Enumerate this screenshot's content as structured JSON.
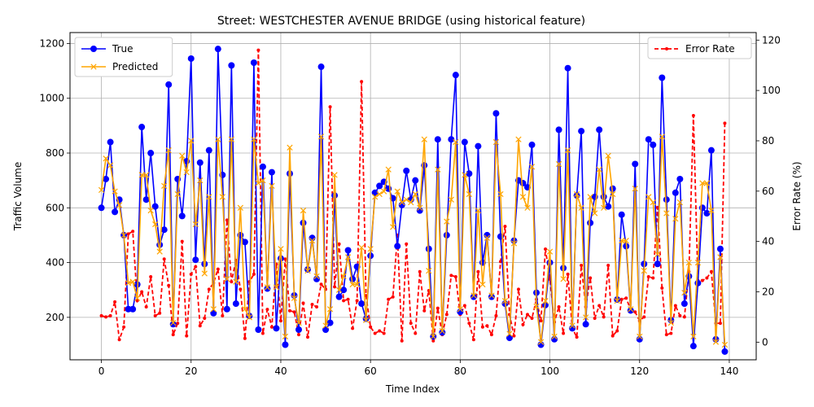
{
  "chart_data": {
    "type": "line",
    "title": "Street: WESTCHESTER AVENUE BRIDGE (using historical feature)",
    "xlabel": "Time Index",
    "ylabel": "Traffic Volume",
    "y2label": "Error Rate (%)",
    "xlim": [
      -7,
      146
    ],
    "ylim": [
      45,
      1240
    ],
    "y2lim": [
      -7,
      123
    ],
    "xticks": [
      0,
      20,
      40,
      60,
      80,
      100,
      120,
      140
    ],
    "yticks": [
      200,
      400,
      600,
      800,
      1000,
      1200
    ],
    "y2ticks": [
      0,
      20,
      40,
      60,
      80,
      100,
      120
    ],
    "grid": true,
    "x": [
      0,
      1,
      2,
      3,
      4,
      5,
      6,
      7,
      8,
      9,
      10,
      11,
      12,
      13,
      14,
      15,
      16,
      17,
      18,
      19,
      20,
      21,
      22,
      23,
      24,
      25,
      26,
      27,
      28,
      29,
      30,
      31,
      32,
      33,
      34,
      35,
      36,
      37,
      38,
      39,
      40,
      41,
      42,
      43,
      44,
      45,
      46,
      47,
      48,
      49,
      50,
      51,
      52,
      53,
      54,
      55,
      56,
      57,
      58,
      59,
      60,
      61,
      62,
      63,
      64,
      65,
      66,
      67,
      68,
      69,
      70,
      71,
      72,
      73,
      74,
      75,
      76,
      77,
      78,
      79,
      80,
      81,
      82,
      83,
      84,
      85,
      86,
      87,
      88,
      89,
      90,
      91,
      92,
      93,
      94,
      95,
      96,
      97,
      98,
      99,
      100,
      101,
      102,
      103,
      104,
      105,
      106,
      107,
      108,
      109,
      110,
      111,
      112,
      113,
      114,
      115,
      116,
      117,
      118,
      119,
      120,
      121,
      122,
      123,
      124,
      125,
      126,
      127,
      128,
      129,
      130,
      131,
      132,
      133,
      134,
      135,
      136,
      137,
      138,
      139
    ],
    "series": [
      {
        "name": "True",
        "axis": "left",
        "color": "#0000ff",
        "style": "solid",
        "marker": "circle",
        "values": [
          600,
          705,
          840,
          585,
          630,
          500,
          230,
          230,
          320,
          895,
          630,
          800,
          605,
          465,
          520,
          1050,
          175,
          705,
          570,
          770,
          1145,
          410,
          765,
          395,
          810,
          215,
          1180,
          720,
          230,
          1120,
          250,
          500,
          475,
          205,
          1130,
          155,
          750,
          305,
          730,
          160,
          415,
          100,
          725,
          280,
          155,
          545,
          375,
          490,
          340,
          1115,
          155,
          180,
          645,
          275,
          300,
          445,
          340,
          385,
          250,
          195,
          425,
          655,
          680,
          695,
          670,
          635,
          460,
          610,
          735,
          630,
          700,
          590,
          755,
          450,
          130,
          850,
          145,
          500,
          850,
          1085,
          220,
          840,
          725,
          275,
          825,
          400,
          500,
          275,
          945,
          495,
          250,
          125,
          480,
          700,
          690,
          675,
          830,
          290,
          100,
          245,
          400,
          120,
          885,
          380,
          1110,
          160,
          645,
          880,
          175,
          545,
          640,
          885,
          640,
          605,
          670,
          265,
          575,
          460,
          225,
          760,
          120,
          395,
          850,
          830,
          395,
          1075,
          630,
          190,
          655,
          705,
          250,
          350,
          95,
          325,
          600,
          580,
          810,
          120,
          450,
          75
        ]
      },
      {
        "name": "Predicted",
        "axis": "left",
        "color": "#ffa500",
        "style": "solid",
        "marker": "x",
        "values": [
          665,
          780,
          755,
          660,
          610,
          500,
          325,
          330,
          270,
          720,
          720,
          590,
          540,
          440,
          680,
          810,
          180,
          650,
          790,
          730,
          845,
          540,
          700,
          360,
          640,
          230,
          850,
          640,
          340,
          850,
          330,
          600,
          230,
          200,
          850,
          690,
          700,
          310,
          680,
          310,
          450,
          130,
          820,
          270,
          180,
          590,
          370,
          480,
          350,
          860,
          170,
          230,
          720,
          300,
          350,
          420,
          320,
          320,
          455,
          190,
          450,
          640,
          650,
          660,
          740,
          530,
          660,
          620,
          630,
          620,
          650,
          600,
          850,
          370,
          130,
          740,
          150,
          550,
          630,
          840,
          230,
          720,
          650,
          280,
          590,
          320,
          490,
          280,
          840,
          650,
          260,
          140,
          470,
          850,
          640,
          600,
          750,
          240,
          110,
          260,
          440,
          130,
          760,
          340,
          810,
          170,
          650,
          600,
          200,
          640,
          580,
          740,
          600,
          790,
          650,
          260,
          480,
          480,
          230,
          670,
          130,
          370,
          640,
          620,
          430,
          860,
          580,
          180,
          560,
          620,
          290,
          400,
          130,
          400,
          690,
          690,
          590,
          110,
          420,
          100
        ]
      },
      {
        "name": "Error Rate",
        "axis": "right",
        "color": "#ff0000",
        "style": "dashed",
        "marker": "dot",
        "values": [
          10.5,
          10.0,
          10.5,
          16.0,
          1.0,
          6.0,
          43.0,
          44.0,
          16.5,
          20.0,
          14.0,
          26.0,
          10.5,
          11.5,
          33.0,
          22.5,
          3.0,
          7.5,
          40.0,
          2.5,
          27.0,
          30.0,
          6.5,
          9.5,
          21.0,
          23.5,
          29.0,
          10.5,
          48.5,
          24.0,
          32.5,
          21.0,
          1.5,
          24.0,
          27.0,
          116.0,
          3.5,
          13.0,
          6.0,
          31.0,
          8.5,
          33.0,
          12.5,
          12.0,
          3.0,
          15.5,
          2.0,
          15.0,
          14.0,
          23.0,
          21.0,
          93.5,
          22.0,
          39.0,
          16.5,
          17.0,
          5.5,
          16.5,
          103.5,
          18.5,
          6.0,
          3.5,
          4.5,
          3.5,
          17.0,
          18.0,
          42.5,
          0.5,
          39.0,
          7.5,
          3.5,
          28.0,
          12.5,
          20.5,
          0.5,
          13.5,
          3.0,
          11.0,
          26.5,
          26.0,
          11.0,
          14.5,
          7.5,
          1.0,
          28.0,
          6.0,
          6.5,
          3.0,
          10.5,
          32.0,
          46.0,
          11.0,
          2.5,
          21.0,
          7.0,
          11.0,
          9.5,
          17.0,
          8.5,
          37.0,
          25.0,
          8.0,
          14.0,
          3.5,
          27.0,
          5.5,
          2.0,
          30.5,
          14.0,
          25.5,
          9.5,
          14.5,
          10.0,
          30.5,
          2.5,
          4.5,
          17.0,
          17.5,
          13.0,
          12.0,
          8.5,
          10.0,
          26.0,
          25.5,
          53.5,
          21.5,
          3.0,
          3.5,
          14.5,
          10.5,
          10.0,
          28.0,
          90.0,
          24.5,
          24.5,
          25.5,
          28.0,
          7.5,
          7.5,
          87.0
        ]
      }
    ],
    "legend": {
      "left_position": "upper-left",
      "right_position": "upper-right",
      "left_entries": [
        "True",
        "Predicted"
      ],
      "right_entries": [
        "Error Rate"
      ]
    }
  }
}
